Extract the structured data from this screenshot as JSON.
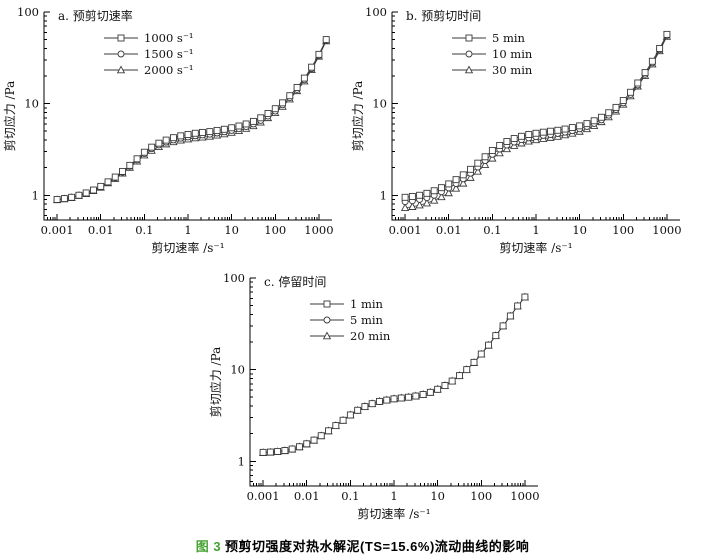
{
  "caption": {
    "label": "图 3",
    "text": "预剪切强度对热水解泥(TS=15.6%)流动曲线的影响"
  },
  "colors": {
    "caption_label": "#46a331",
    "caption_text": "#000000",
    "curve": "#3a3a3a",
    "axis": "#000000",
    "marker_fill": "#ffffff",
    "background": "#ffffff"
  },
  "chart_data": [
    {
      "id": "a",
      "type": "line",
      "title": "a. 预剪切速率",
      "xlabel": "剪切速率 /s⁻¹",
      "ylabel": "剪切应力 /Pa",
      "xscale": "log",
      "yscale": "log",
      "xlim": [
        0.0005,
        2000
      ],
      "ylim": [
        0.54,
        100
      ],
      "x_ticks": [
        "0.001",
        "0.01",
        "0.1",
        "1",
        "10",
        "100",
        "1000"
      ],
      "y_ticks": [
        "1",
        "10",
        "100"
      ],
      "grid": false,
      "legend_position": "upper-left",
      "x": [
        0.001,
        0.00147,
        0.00215,
        0.00316,
        0.00464,
        0.00681,
        0.01,
        0.0147,
        0.0215,
        0.0316,
        0.0464,
        0.0681,
        0.1,
        0.147,
        0.215,
        0.316,
        0.464,
        0.681,
        1,
        1.47,
        2.15,
        3.16,
        4.64,
        6.81,
        10,
        14.7,
        21.5,
        31.6,
        46.4,
        68.1,
        100,
        147,
        215,
        316,
        464,
        681,
        1000,
        1470
      ],
      "series": [
        {
          "name": "1000 s⁻¹",
          "marker": "square",
          "y": [
            0.9,
            0.92,
            0.95,
            1.0,
            1.06,
            1.14,
            1.25,
            1.4,
            1.58,
            1.82,
            2.12,
            2.5,
            2.95,
            3.35,
            3.7,
            4.0,
            4.25,
            4.45,
            4.6,
            4.75,
            4.85,
            4.95,
            5.1,
            5.25,
            5.45,
            5.7,
            6.0,
            6.4,
            7.0,
            7.8,
            8.8,
            10.2,
            12.2,
            15.0,
            19.0,
            25.0,
            34.5,
            50.0
          ]
        },
        {
          "name": "1500 s⁻¹",
          "marker": "circle",
          "y": [
            0.9,
            0.92,
            0.95,
            1.0,
            1.05,
            1.13,
            1.23,
            1.38,
            1.55,
            1.78,
            2.07,
            2.43,
            2.85,
            3.22,
            3.54,
            3.8,
            4.02,
            4.2,
            4.33,
            4.46,
            4.55,
            4.64,
            4.78,
            4.92,
            5.1,
            5.33,
            5.62,
            6.0,
            6.56,
            7.32,
            8.3,
            9.7,
            11.6,
            14.3,
            18.2,
            24.1,
            33.5,
            49.0
          ]
        },
        {
          "name": "2000 s⁻¹",
          "marker": "triangle",
          "y": [
            0.89,
            0.91,
            0.94,
            0.99,
            1.04,
            1.12,
            1.22,
            1.36,
            1.52,
            1.74,
            2.01,
            2.35,
            2.74,
            3.08,
            3.38,
            3.62,
            3.82,
            3.98,
            4.1,
            4.21,
            4.3,
            4.39,
            4.52,
            4.66,
            4.84,
            5.06,
            5.35,
            5.72,
            6.26,
            7.0,
            7.95,
            9.3,
            11.2,
            13.8,
            17.6,
            23.4,
            32.8,
            48.2
          ]
        }
      ]
    },
    {
      "id": "b",
      "type": "line",
      "title": "b. 预剪切时间",
      "xlabel": "剪切速率 /s⁻¹",
      "ylabel": "剪切应力 /Pa",
      "xscale": "log",
      "yscale": "log",
      "xlim": [
        0.0005,
        2000
      ],
      "ylim": [
        0.54,
        100
      ],
      "x_ticks": [
        "0.001",
        "0.01",
        "0.1",
        "1",
        "10",
        "100",
        "1000"
      ],
      "y_ticks": [
        "1",
        "10",
        "100"
      ],
      "grid": false,
      "legend_position": "upper-left",
      "x": [
        0.001,
        0.00147,
        0.00215,
        0.00316,
        0.00464,
        0.00681,
        0.01,
        0.0147,
        0.0215,
        0.0316,
        0.0464,
        0.0681,
        0.1,
        0.147,
        0.215,
        0.316,
        0.464,
        0.681,
        1,
        1.47,
        2.15,
        3.16,
        4.64,
        6.81,
        10,
        14.7,
        21.5,
        31.6,
        46.4,
        68.1,
        100,
        147,
        215,
        316,
        464,
        681,
        1000
      ],
      "series": [
        {
          "name": "5 min",
          "marker": "square",
          "y": [
            0.95,
            0.97,
            1.0,
            1.05,
            1.12,
            1.21,
            1.33,
            1.48,
            1.67,
            1.92,
            2.24,
            2.63,
            3.08,
            3.5,
            3.86,
            4.16,
            4.4,
            4.6,
            4.75,
            4.88,
            5.0,
            5.12,
            5.28,
            5.48,
            5.72,
            6.05,
            6.5,
            7.1,
            7.95,
            9.1,
            10.8,
            13.3,
            16.8,
            21.8,
            29.0,
            40.0,
            57.0
          ]
        },
        {
          "name": "10 min",
          "marker": "circle",
          "y": [
            0.85,
            0.87,
            0.9,
            0.94,
            1.0,
            1.09,
            1.2,
            1.34,
            1.51,
            1.74,
            2.03,
            2.39,
            2.8,
            3.19,
            3.53,
            3.81,
            4.04,
            4.22,
            4.36,
            4.49,
            4.6,
            4.72,
            4.88,
            5.07,
            5.31,
            5.63,
            6.07,
            6.66,
            7.48,
            8.6,
            10.2,
            12.6,
            16.0,
            20.9,
            27.9,
            38.7,
            55.5
          ]
        },
        {
          "name": "30 min",
          "marker": "triangle",
          "y": [
            0.73,
            0.75,
            0.78,
            0.82,
            0.88,
            0.96,
            1.06,
            1.19,
            1.35,
            1.56,
            1.82,
            2.15,
            2.53,
            2.89,
            3.21,
            3.48,
            3.7,
            3.88,
            4.02,
            4.15,
            4.26,
            4.38,
            4.54,
            4.73,
            4.97,
            5.3,
            5.74,
            6.33,
            7.14,
            8.25,
            9.8,
            12.1,
            15.5,
            20.2,
            27.0,
            37.6,
            54.0
          ]
        }
      ]
    },
    {
      "id": "c",
      "type": "line",
      "title": "c. 停留时间",
      "xlabel": "剪切速率 /s⁻¹",
      "ylabel": "剪切应力 /Pa",
      "xscale": "log",
      "yscale": "log",
      "xlim": [
        0.0005,
        2000
      ],
      "ylim": [
        0.54,
        100
      ],
      "x_ticks": [
        "0.001",
        "0.01",
        "0.1",
        "1",
        "10",
        "100",
        "1000"
      ],
      "y_ticks": [
        "1",
        "10",
        "100"
      ],
      "grid": false,
      "legend_position": "upper-left",
      "x": [
        0.001,
        0.00147,
        0.00215,
        0.00316,
        0.00464,
        0.00681,
        0.01,
        0.0147,
        0.0215,
        0.0316,
        0.0464,
        0.0681,
        0.1,
        0.147,
        0.215,
        0.316,
        0.464,
        0.681,
        1,
        1.47,
        2.15,
        3.16,
        4.64,
        6.81,
        10,
        14.7,
        21.5,
        31.6,
        46.4,
        68.1,
        100,
        147,
        215,
        316,
        464,
        681,
        1000
      ],
      "series": [
        {
          "name": "1 min",
          "marker": "square",
          "y": [
            1.25,
            1.26,
            1.28,
            1.31,
            1.36,
            1.44,
            1.55,
            1.7,
            1.9,
            2.15,
            2.45,
            2.8,
            3.2,
            3.6,
            3.95,
            4.25,
            4.5,
            4.65,
            4.8,
            4.9,
            5.0,
            5.15,
            5.35,
            5.65,
            6.1,
            6.7,
            7.5,
            8.6,
            10.0,
            12.0,
            14.8,
            18.5,
            23.5,
            30.0,
            38.5,
            49.5,
            62.0
          ]
        },
        {
          "name": "5 min",
          "marker": "circle",
          "y": [
            1.25,
            1.26,
            1.28,
            1.31,
            1.36,
            1.44,
            1.55,
            1.7,
            1.9,
            2.15,
            2.45,
            2.8,
            3.2,
            3.6,
            3.95,
            4.25,
            4.5,
            4.65,
            4.8,
            4.9,
            5.0,
            5.15,
            5.35,
            5.65,
            6.1,
            6.7,
            7.5,
            8.6,
            10.0,
            12.0,
            14.8,
            18.5,
            23.5,
            30.0,
            38.5,
            49.5,
            62.0
          ]
        },
        {
          "name": "20 min",
          "marker": "triangle",
          "y": [
            1.24,
            1.25,
            1.27,
            1.3,
            1.35,
            1.43,
            1.54,
            1.69,
            1.89,
            2.14,
            2.44,
            2.79,
            3.19,
            3.59,
            3.94,
            4.24,
            4.49,
            4.64,
            4.79,
            4.89,
            4.99,
            5.14,
            5.34,
            5.64,
            6.09,
            6.69,
            7.49,
            8.59,
            9.99,
            11.9,
            14.7,
            18.4,
            23.4,
            29.9,
            38.4,
            49.4,
            61.8
          ]
        }
      ]
    }
  ]
}
